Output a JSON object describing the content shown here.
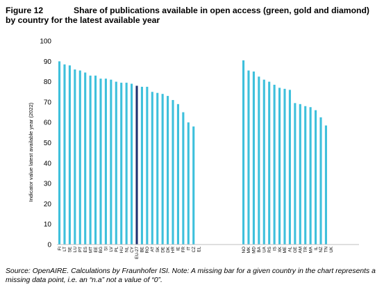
{
  "figure": {
    "number": "Figure 12",
    "title": "Share of publications available in open access (green, gold and diamond) by country for the latest available year"
  },
  "footnote": "Source: OpenAIRE. Calculations by Fraunhofer ISI. Note: A missing bar for a given country in the chart represents a missing data point, i.e. an “n.a” not a value of “0”.",
  "colors": {
    "bar": "#3ec0dc",
    "highlight": "#1f3070",
    "axis": "#bfbfbf",
    "text": "#000000"
  },
  "chart_data": {
    "type": "bar",
    "ylabel": "Indicator value latest available year (2022)",
    "ylim": [
      0,
      100
    ],
    "yticks": [
      0,
      10,
      20,
      30,
      40,
      50,
      60,
      70,
      80,
      90,
      100
    ],
    "grid": false,
    "highlight_category": "EU-27",
    "groups": [
      {
        "categories": [
          "FI",
          "LT",
          "SE",
          "LU",
          "PT",
          "ES",
          "MT",
          "EE",
          "BG",
          "SI",
          "LV",
          "PL",
          "HU",
          "NL",
          "CY",
          "EU-27",
          "BE",
          "RO",
          "AT",
          "SK",
          "DE",
          "DK",
          "HR",
          "IE",
          "FR",
          "IT",
          "CZ",
          "EL"
        ],
        "values": [
          90,
          88.5,
          88,
          86,
          85.5,
          84.5,
          83,
          83,
          81.5,
          81.5,
          81,
          80,
          79.5,
          79.5,
          79,
          78,
          77.5,
          77.5,
          75,
          74.5,
          74,
          73,
          71,
          69,
          65,
          60,
          58,
          null
        ]
      },
      {
        "categories": [
          "NO",
          "MK",
          "MD",
          "BA",
          "UA",
          "RS",
          "IS",
          "XK",
          "ME",
          "AL",
          "GE",
          "AM",
          "TR",
          "MA",
          "IL",
          "NZ",
          "TN",
          "UK"
        ],
        "values": [
          90.5,
          85.5,
          85,
          82.5,
          81,
          80,
          78.5,
          77,
          76.5,
          76,
          69.5,
          69,
          68,
          67.5,
          66,
          62.5,
          58.5,
          null
        ]
      }
    ]
  }
}
